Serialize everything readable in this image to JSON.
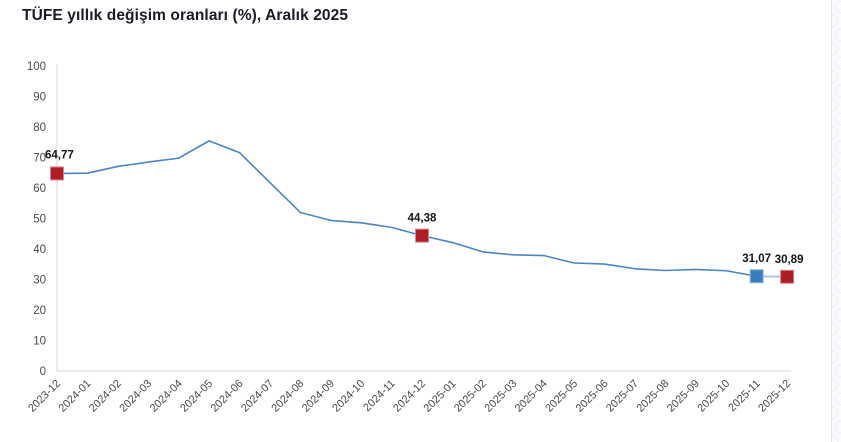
{
  "header": {
    "title": "TÜFE yıllık değişim oranları (%), Aralık 2025"
  },
  "chart_data": {
    "type": "line",
    "title": "TÜFE yıllık değişim oranları (%), Aralık 2025",
    "x": [
      "2023-12",
      "2024-01",
      "2024-02",
      "2024-03",
      "2024-04",
      "2024-05",
      "2024-06",
      "2024-07",
      "2024-08",
      "2024-09",
      "2024-10",
      "2024-11",
      "2024-12",
      "2025-01",
      "2025-02",
      "2025-03",
      "2025-04",
      "2025-05",
      "2025-06",
      "2025-07",
      "2025-08",
      "2025-09",
      "2025-10",
      "2025-11",
      "2025-12"
    ],
    "values": [
      64.77,
      64.86,
      67.07,
      68.5,
      69.8,
      75.45,
      71.6,
      61.78,
      51.97,
      49.38,
      48.58,
      47.09,
      44.38,
      42.12,
      39.05,
      38.1,
      37.86,
      35.41,
      35.05,
      33.52,
      32.95,
      33.29,
      32.87,
      31.07,
      30.89
    ],
    "ylim": [
      0,
      100
    ],
    "yticks": [
      0,
      10,
      20,
      30,
      40,
      50,
      60,
      70,
      80,
      90,
      100
    ],
    "grid": false,
    "legend": "none",
    "line_color": "#4a86c2",
    "last_segment_color": "#a9c7e4",
    "axis_color": "#d9d9de",
    "tick_label_color": "#4a4a50",
    "annotation_label_color": "#141414",
    "annotations": [
      {
        "x": "2023-12",
        "index": 0,
        "label": "64,77",
        "marker": "square",
        "color": "#ae1c24",
        "stroke": "#d2888c"
      },
      {
        "x": "2024-12",
        "index": 12,
        "label": "44,38",
        "marker": "square",
        "color": "#ae1c24",
        "stroke": "#d2888c"
      },
      {
        "x": "2025-11",
        "index": 23,
        "label": "31,07",
        "marker": "square",
        "color": "#3a7dbb",
        "stroke": "#8fb5da"
      },
      {
        "x": "2025-12",
        "index": 24,
        "label": "30,89",
        "marker": "square",
        "color": "#ae1c24",
        "stroke": "#d2888c"
      }
    ]
  }
}
